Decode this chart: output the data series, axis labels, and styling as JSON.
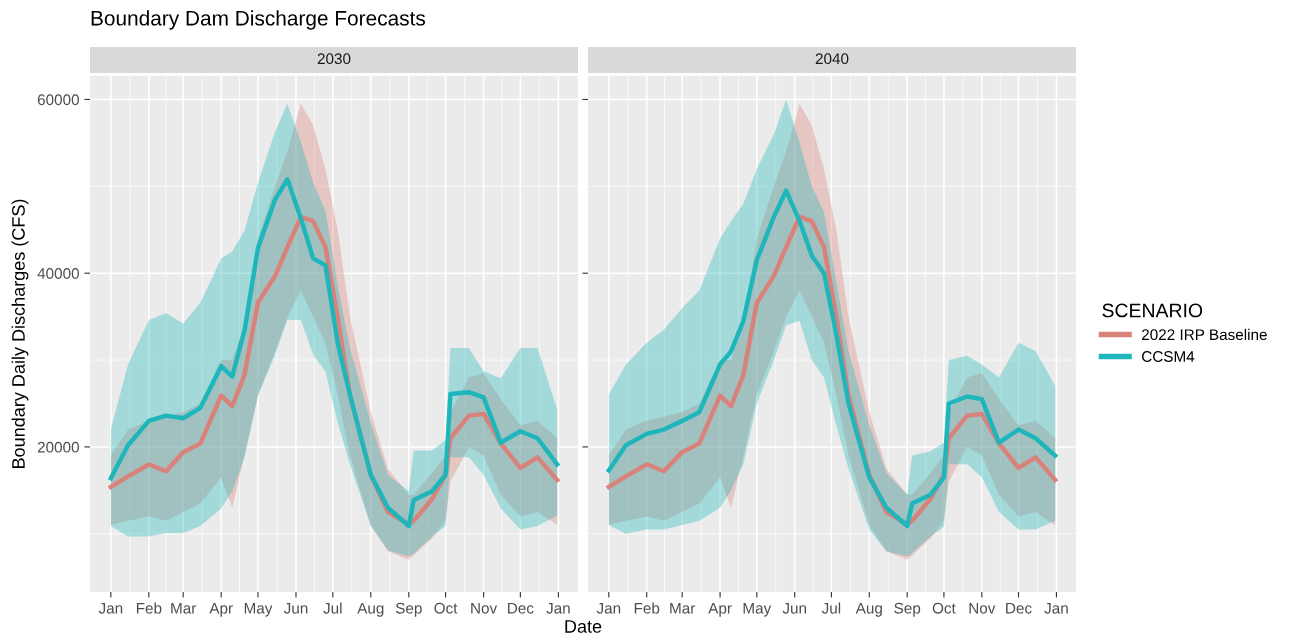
{
  "chart_data": [
    {
      "type": "line",
      "title": "Boundary Dam Discharge Forecasts",
      "subtitle": "2030",
      "xlabel": "Date",
      "ylabel": "Boundary Daily Discharges (CFS)",
      "legend_title": "SCENARIO",
      "legend": "right",
      "x": [
        "2030-01-01",
        "2030-01-15",
        "2030-02-01",
        "2030-02-15",
        "2030-03-01",
        "2030-03-15",
        "2030-04-01",
        "2030-04-10",
        "2030-04-20",
        "2030-05-01",
        "2030-05-15",
        "2030-05-25",
        "2030-06-05",
        "2030-06-15",
        "2030-06-25",
        "2030-07-05",
        "2030-07-15",
        "2030-08-01",
        "2030-08-15",
        "2030-09-01",
        "2030-09-05",
        "2030-09-20",
        "2030-10-01",
        "2030-10-05",
        "2030-10-20",
        "2030-11-01",
        "2030-11-15",
        "2030-12-01",
        "2030-12-15",
        "2030-12-31"
      ],
      "series": [
        {
          "name": "2022 IRP Baseline",
          "color": "#d98279",
          "values": [
            15400,
            16600,
            18000,
            17200,
            19400,
            20400,
            25900,
            24700,
            28300,
            36600,
            39700,
            43000,
            46500,
            46000,
            43000,
            35000,
            25900,
            16800,
            12500,
            11100,
            11500,
            14000,
            16800,
            21000,
            23600,
            23800,
            20400,
            17600,
            18800,
            16200
          ],
          "lower": [
            11000,
            11500,
            12000,
            11500,
            12500,
            13500,
            16500,
            13000,
            19000,
            26000,
            31000,
            35000,
            38000,
            35000,
            32000,
            26000,
            19000,
            11000,
            8000,
            7000,
            7500,
            9500,
            11500,
            16000,
            20000,
            19000,
            14500,
            12000,
            12500,
            11000
          ],
          "upper": [
            19000,
            22000,
            23000,
            23500,
            24000,
            25000,
            30000,
            30000,
            34000,
            44000,
            50000,
            54000,
            59500,
            57000,
            52000,
            45000,
            35000,
            24000,
            17500,
            14500,
            14500,
            17000,
            19000,
            24000,
            28000,
            28500,
            25500,
            22500,
            23000,
            21000
          ]
        },
        {
          "name": "CCSM4",
          "color": "#1fb6bb",
          "values": [
            16400,
            20200,
            23000,
            23600,
            23300,
            24500,
            29300,
            28100,
            33400,
            42900,
            48500,
            50800,
            46300,
            41700,
            40900,
            32000,
            26000,
            16800,
            13000,
            10900,
            13900,
            14900,
            16800,
            26100,
            26300,
            25700,
            20500,
            21800,
            21000,
            18000
          ],
          "lower": [
            10900,
            9700,
            9700,
            10100,
            10100,
            10900,
            12900,
            14900,
            18800,
            25900,
            30600,
            34600,
            34600,
            30600,
            28700,
            22800,
            18000,
            10900,
            8100,
            7400,
            7700,
            9700,
            10900,
            18800,
            18800,
            16800,
            12900,
            10500,
            10900,
            12100
          ],
          "upper": [
            22000,
            29500,
            34600,
            35400,
            34200,
            36600,
            41700,
            42500,
            44900,
            50400,
            56300,
            59500,
            55100,
            50400,
            47200,
            38600,
            31400,
            22800,
            16800,
            14900,
            19600,
            19600,
            20800,
            31400,
            31400,
            28700,
            27900,
            31400,
            31400,
            24300
          ]
        }
      ],
      "xlim": [
        "2029-12-15",
        "2031-01-17"
      ],
      "xticks": [
        {
          "value": "2030-01-01",
          "label": "Jan"
        },
        {
          "value": "2030-02-01",
          "label": "Feb"
        },
        {
          "value": "2030-03-01",
          "label": "Mar"
        },
        {
          "value": "2030-04-01",
          "label": "Apr"
        },
        {
          "value": "2030-05-01",
          "label": "May"
        },
        {
          "value": "2030-06-01",
          "label": "Jun"
        },
        {
          "value": "2030-07-01",
          "label": "Jul"
        },
        {
          "value": "2030-08-01",
          "label": "Aug"
        },
        {
          "value": "2030-09-01",
          "label": "Sep"
        },
        {
          "value": "2030-10-01",
          "label": "Oct"
        },
        {
          "value": "2030-11-01",
          "label": "Nov"
        },
        {
          "value": "2030-12-01",
          "label": "Dec"
        },
        {
          "value": "2031-01-01",
          "label": "Jan"
        }
      ],
      "ylim": [
        3300,
        62700
      ],
      "yticks": [
        20000,
        40000,
        60000
      ],
      "grid": true,
      "line_style": "solid"
    },
    {
      "type": "line",
      "subtitle": "2040",
      "tick_labels": "x",
      "x": [
        "2040-01-01",
        "2040-01-15",
        "2040-02-01",
        "2040-02-15",
        "2040-03-01",
        "2040-03-15",
        "2040-04-01",
        "2040-04-10",
        "2040-04-20",
        "2040-05-01",
        "2040-05-15",
        "2040-05-25",
        "2040-06-05",
        "2040-06-15",
        "2040-06-25",
        "2040-07-05",
        "2040-07-15",
        "2040-08-01",
        "2040-08-15",
        "2040-09-01",
        "2040-09-05",
        "2040-09-20",
        "2040-10-01",
        "2040-10-05",
        "2040-10-20",
        "2040-11-01",
        "2040-11-15",
        "2040-12-01",
        "2040-12-15",
        "2040-12-31"
      ],
      "series": [
        {
          "name": "2022 IRP Baseline",
          "color": "#d98279",
          "values": [
            15400,
            16600,
            18000,
            17200,
            19400,
            20400,
            25900,
            24700,
            28300,
            36600,
            39700,
            43000,
            46500,
            46000,
            43000,
            35000,
            25900,
            16800,
            12500,
            11100,
            11500,
            14000,
            16800,
            21000,
            23600,
            23800,
            20400,
            17600,
            18800,
            16200
          ],
          "lower": [
            11000,
            11500,
            12000,
            11500,
            12500,
            13500,
            16500,
            13000,
            19000,
            26000,
            31000,
            35000,
            38000,
            35000,
            32000,
            26000,
            19000,
            11000,
            8000,
            7000,
            7500,
            9500,
            11500,
            16000,
            20000,
            19000,
            14500,
            12000,
            12500,
            11000
          ],
          "upper": [
            19000,
            22000,
            23000,
            23500,
            24000,
            25000,
            30000,
            30000,
            34000,
            44000,
            50000,
            54000,
            59500,
            57000,
            52000,
            45000,
            35000,
            24000,
            17500,
            14500,
            14500,
            17000,
            19000,
            24000,
            28000,
            28500,
            25500,
            22500,
            23000,
            21000
          ]
        },
        {
          "name": "CCSM4",
          "color": "#1fb6bb",
          "values": [
            17300,
            20200,
            21500,
            22000,
            23000,
            24000,
            29500,
            31000,
            34500,
            41500,
            46500,
            49500,
            46000,
            42000,
            40000,
            33000,
            25000,
            16500,
            13000,
            10900,
            13500,
            14500,
            16500,
            25000,
            25800,
            25500,
            20500,
            22000,
            21000,
            19000
          ],
          "lower": [
            11000,
            10000,
            10500,
            10500,
            11000,
            11500,
            13000,
            15000,
            18000,
            25000,
            30000,
            34000,
            34500,
            30000,
            28000,
            22500,
            17500,
            10500,
            8000,
            7400,
            7800,
            9700,
            10800,
            18000,
            18000,
            16500,
            12500,
            10500,
            10500,
            11500
          ],
          "upper": [
            26000,
            29500,
            32000,
            33500,
            36000,
            38000,
            44000,
            46000,
            48000,
            52000,
            56000,
            60000,
            55000,
            50000,
            47000,
            39000,
            31000,
            22500,
            17000,
            14500,
            19000,
            19500,
            20500,
            30000,
            30500,
            29500,
            28000,
            32000,
            31000,
            27000
          ]
        }
      ],
      "xlim": [
        "2039-12-15",
        "2041-01-17"
      ],
      "xticks": [
        {
          "value": "2040-01-01",
          "label": "Jan"
        },
        {
          "value": "2040-02-01",
          "label": "Feb"
        },
        {
          "value": "2040-03-01",
          "label": "Mar"
        },
        {
          "value": "2040-04-01",
          "label": "Apr"
        },
        {
          "value": "2040-05-01",
          "label": "May"
        },
        {
          "value": "2040-06-01",
          "label": "Jun"
        },
        {
          "value": "2040-07-01",
          "label": "Jul"
        },
        {
          "value": "2040-08-01",
          "label": "Aug"
        },
        {
          "value": "2040-09-01",
          "label": "Sep"
        },
        {
          "value": "2040-10-01",
          "label": "Oct"
        },
        {
          "value": "2040-11-01",
          "label": "Nov"
        },
        {
          "value": "2040-12-01",
          "label": "Dec"
        },
        {
          "value": "2041-01-01",
          "label": "Jan"
        }
      ],
      "ylim": [
        3300,
        62700
      ],
      "yticks": [
        20000,
        40000,
        60000
      ],
      "grid": true,
      "line_style": "solid"
    }
  ]
}
